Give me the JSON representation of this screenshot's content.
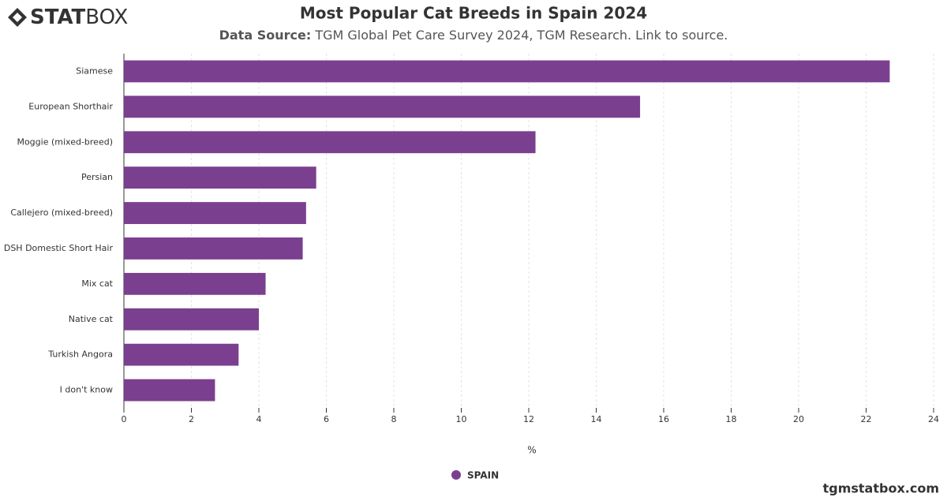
{
  "logo": {
    "bold": "STAT",
    "light": "BOX"
  },
  "footer": "tgmstatbox.com",
  "chart_data": {
    "type": "hbar",
    "title": "Most Popular Cat Breeds in Spain 2024",
    "subtitle_label": "Data Source:",
    "subtitle_text": "TGM Global Pet Care Survey 2024, TGM Research. Link to source.",
    "x_label": "%",
    "categories": [
      "Siamese",
      "European Shorthair",
      "Moggie (mixed-breed)",
      "Persian",
      "Callejero (mixed-breed)",
      "DSH Domestic Short Hair",
      "Mix cat",
      "Native cat",
      "Turkish Angora",
      "I don't know"
    ],
    "series": [
      {
        "name": "SPAIN",
        "color": "#7b3f8f",
        "values": [
          22.7,
          15.3,
          12.2,
          5.7,
          5.4,
          5.3,
          4.2,
          4.0,
          3.4,
          2.7
        ]
      }
    ],
    "xlim": [
      0,
      24
    ],
    "xticks": [
      0,
      2,
      4,
      6,
      8,
      10,
      12,
      14,
      16,
      18,
      20,
      22,
      24
    ],
    "grid": true
  }
}
